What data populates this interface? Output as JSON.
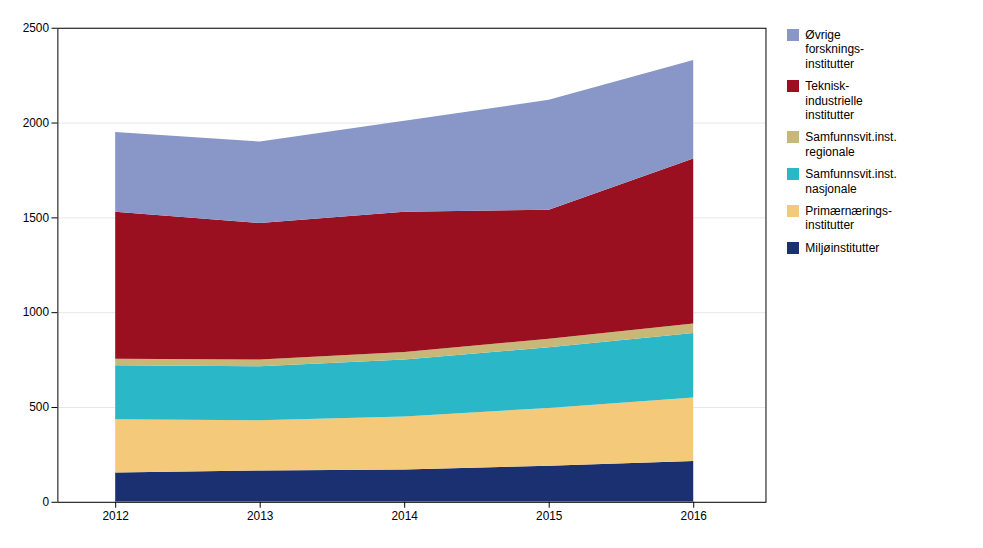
{
  "chart_data": {
    "type": "area",
    "stacked": true,
    "x": [
      2012,
      2013,
      2014,
      2015,
      2016
    ],
    "series": [
      {
        "name": "Miljøinstitutter",
        "color": "#1a3070",
        "values": [
          155,
          165,
          170,
          190,
          215
        ]
      },
      {
        "name": "Primærnærings-\ninstitutter",
        "color": "#f5c97a",
        "values": [
          280,
          265,
          280,
          305,
          335
        ]
      },
      {
        "name": "Samfunnsvit.inst.\nnasjonale",
        "color": "#2ab8c8",
        "values": [
          285,
          285,
          300,
          320,
          340
        ]
      },
      {
        "name": "Samfunnsvit.inst.\nregionale",
        "color": "#c8b878",
        "values": [
          35,
          35,
          40,
          45,
          50
        ]
      },
      {
        "name": "Teknisk-\nindustrielle\ninstitutter",
        "color": "#9a1020",
        "values": [
          775,
          720,
          740,
          680,
          870
        ]
      },
      {
        "name": "Øvrige\nforsknings-\ninstitutter",
        "color": "#8896c8",
        "values": [
          420,
          430,
          480,
          580,
          520
        ]
      }
    ],
    "xlim": [
      2011.6,
      2016.5
    ],
    "xticks": [
      2012,
      2013,
      2014,
      2015,
      2016
    ],
    "ylim": [
      0,
      2500
    ],
    "yticks": [
      0,
      500,
      1000,
      1500,
      2000,
      2500
    ],
    "grid": true,
    "legend": "right"
  }
}
